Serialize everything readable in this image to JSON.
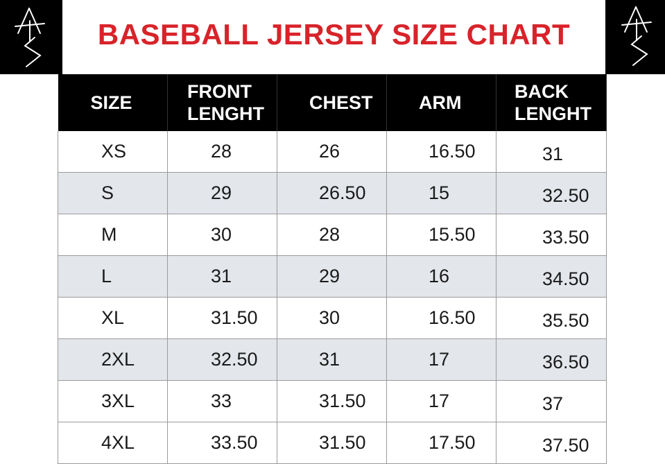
{
  "title": "BASEBALL JERSEY SIZE CHART",
  "colors": {
    "title": "#d8232a",
    "header_bg": "#000000",
    "alt_row": "#e3e6eb"
  },
  "headers": {
    "size": "SIZE",
    "front_line1": "FRONT",
    "front_line2": "LENGHT",
    "chest": "CHEST",
    "arm": "ARM",
    "back_line1": "BACK",
    "back_line2": "LENGHT"
  },
  "rows": [
    {
      "size": "XS",
      "front": "28",
      "chest": "26",
      "arm": "16.50",
      "back": "31"
    },
    {
      "size": "S",
      "front": "29",
      "chest": "26.50",
      "arm": "15",
      "back": "32.50"
    },
    {
      "size": "M",
      "front": "30",
      "chest": "28",
      "arm": "15.50",
      "back": "33.50"
    },
    {
      "size": "L",
      "front": "31",
      "chest": "29",
      "arm": "16",
      "back": "34.50"
    },
    {
      "size": "XL",
      "front": "31.50",
      "chest": "30",
      "arm": "16.50",
      "back": "35.50"
    },
    {
      "size": "2XL",
      "front": "32.50",
      "chest": "31",
      "arm": "17",
      "back": "36.50"
    },
    {
      "size": "3XL",
      "front": "33",
      "chest": "31.50",
      "arm": "17",
      "back": "37"
    },
    {
      "size": "4XL",
      "front": "33.50",
      "chest": "31.50",
      "arm": "17.50",
      "back": "37.50"
    }
  ]
}
